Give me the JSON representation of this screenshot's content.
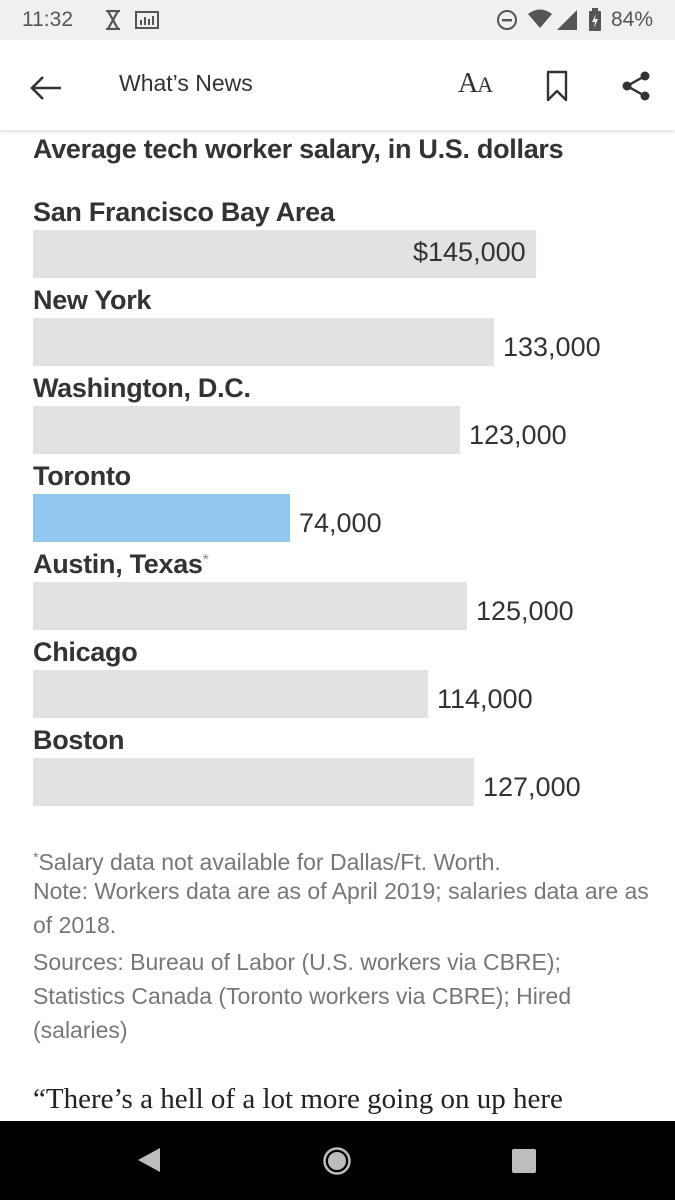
{
  "status_bar": {
    "time": "11:32",
    "battery": "84%",
    "icons": [
      "hourglass-icon",
      "signal-chart-icon",
      "do-not-disturb-icon",
      "wifi-icon",
      "cell-signal-icon",
      "battery-icon"
    ]
  },
  "app_bar": {
    "title": "What’s News",
    "font_size_label_large": "A",
    "font_size_label_small": "A"
  },
  "chart_data": {
    "type": "bar",
    "orientation": "horizontal",
    "title": "Average tech worker salary, in U.S. dollars",
    "categories": [
      "San Francisco Bay Area",
      "New York",
      "Washington, D.C.",
      "Toronto",
      "Austin, Texas",
      "Chicago",
      "Boston"
    ],
    "category_markers": [
      "",
      "",
      "",
      "",
      "*",
      "",
      ""
    ],
    "values": [
      145000,
      133000,
      123000,
      74000,
      125000,
      114000,
      127000
    ],
    "value_labels": [
      "$145,000",
      "133,000",
      "123,000",
      "74,000",
      "125,000",
      "114,000",
      "127,000"
    ],
    "highlight": "Toronto",
    "colors": {
      "default": "#e3e1e4",
      "highlight": "#92c8ef"
    },
    "xlim": [
      0,
      145000
    ],
    "xlabel": "",
    "ylabel": ""
  },
  "notes": {
    "footnote_marker": "*",
    "footnote": "Salary data not available for Dallas/Ft. Worth.",
    "note": "Note: Workers data are as of April 2019; salaries data are as of 2018.",
    "sources": "Sources: Bureau of Labor (U.S. workers via CBRE); Statistics Canada (Toronto workers via CBRE); Hired (salaries)"
  },
  "article": {
    "quote_start": "“There’s a hell of a lot more going on up here"
  }
}
